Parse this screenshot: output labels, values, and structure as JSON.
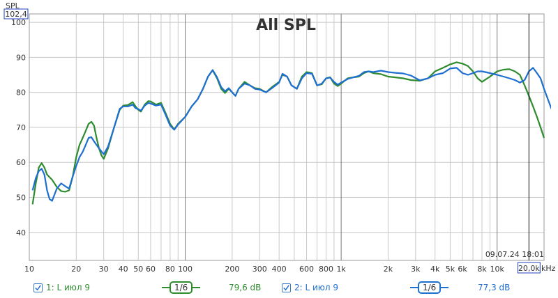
{
  "chart_data": {
    "type": "line",
    "title": "All SPL",
    "ylabel": "SPL",
    "xunit": "kHz",
    "xscale": "log",
    "xlim": [
      10,
      20000
    ],
    "ylim": [
      32,
      102.4
    ],
    "ymax_label": "102,4",
    "xmax_label": "20,0k",
    "yticks": [
      40,
      50,
      60,
      70,
      80,
      90,
      100
    ],
    "xticks": [
      {
        "v": 10,
        "label": "10"
      },
      {
        "v": 20,
        "label": "20"
      },
      {
        "v": 30,
        "label": "30"
      },
      {
        "v": 40,
        "label": "40"
      },
      {
        "v": 50,
        "label": "50"
      },
      {
        "v": 60,
        "label": "60"
      },
      {
        "v": 80,
        "label": "80"
      },
      {
        "v": 100,
        "label": "100"
      },
      {
        "v": 200,
        "label": "200"
      },
      {
        "v": 300,
        "label": "300"
      },
      {
        "v": 400,
        "label": "400"
      },
      {
        "v": 600,
        "label": "600"
      },
      {
        "v": 800,
        "label": "800"
      },
      {
        "v": 1000,
        "label": "1k"
      },
      {
        "v": 2000,
        "label": "2k"
      },
      {
        "v": 3000,
        "label": "3k"
      },
      {
        "v": 4000,
        "label": "4k"
      },
      {
        "v": 5000,
        "label": "5k"
      },
      {
        "v": 6000,
        "label": "6k"
      },
      {
        "v": 8000,
        "label": "8k"
      },
      {
        "v": 10000,
        "label": "10k"
      }
    ],
    "cursor_x": 16000,
    "timestamp": "09.07.24 18:01",
    "series": [
      {
        "name": "1: L июл 9",
        "color": "#2e8b2e",
        "smoothing": "1/6",
        "level": "79,6 dB",
        "points": [
          [
            10.5,
            48
          ],
          [
            11,
            54
          ],
          [
            11.5,
            58.5
          ],
          [
            12,
            59.8
          ],
          [
            12.5,
            58.5
          ],
          [
            13,
            56.5
          ],
          [
            14,
            55
          ],
          [
            15,
            53
          ],
          [
            16,
            51.8
          ],
          [
            17,
            51.6
          ],
          [
            18,
            52
          ],
          [
            19,
            56
          ],
          [
            20,
            61.5
          ],
          [
            21,
            65
          ],
          [
            22,
            67
          ],
          [
            23,
            69
          ],
          [
            24,
            71
          ],
          [
            25,
            71.6
          ],
          [
            26,
            70.5
          ],
          [
            27,
            67
          ],
          [
            28,
            64
          ],
          [
            29,
            62
          ],
          [
            30,
            61
          ],
          [
            32,
            64
          ],
          [
            35,
            70
          ],
          [
            38,
            75
          ],
          [
            40,
            76.2
          ],
          [
            43,
            76.4
          ],
          [
            46,
            77.2
          ],
          [
            48,
            76
          ],
          [
            50,
            75
          ],
          [
            52,
            74.5
          ],
          [
            55,
            76.5
          ],
          [
            58,
            77.5
          ],
          [
            60,
            77.4
          ],
          [
            65,
            76.5
          ],
          [
            70,
            77
          ],
          [
            75,
            74
          ],
          [
            80,
            71
          ],
          [
            85,
            69.4
          ],
          [
            90,
            71
          ],
          [
            100,
            73
          ],
          [
            110,
            76
          ],
          [
            120,
            78
          ],
          [
            130,
            81
          ],
          [
            140,
            84.5
          ],
          [
            150,
            86.3
          ],
          [
            160,
            84
          ],
          [
            170,
            81
          ],
          [
            180,
            79.8
          ],
          [
            190,
            81
          ],
          [
            200,
            80
          ],
          [
            210,
            79
          ],
          [
            220,
            81
          ],
          [
            240,
            83
          ],
          [
            260,
            82
          ],
          [
            280,
            81.2
          ],
          [
            300,
            81
          ],
          [
            330,
            80
          ],
          [
            360,
            81.5
          ],
          [
            400,
            83
          ],
          [
            420,
            85
          ],
          [
            450,
            84.5
          ],
          [
            480,
            82
          ],
          [
            520,
            81
          ],
          [
            560,
            84.5
          ],
          [
            600,
            85.8
          ],
          [
            650,
            85.5
          ],
          [
            700,
            82
          ],
          [
            750,
            82.3
          ],
          [
            800,
            84
          ],
          [
            850,
            84.3
          ],
          [
            900,
            82.5
          ],
          [
            950,
            81.8
          ],
          [
            1000,
            82.5
          ],
          [
            1100,
            84
          ],
          [
            1200,
            84.3
          ],
          [
            1300,
            84.5
          ],
          [
            1400,
            85.5
          ],
          [
            1500,
            86
          ],
          [
            1600,
            85.5
          ],
          [
            1800,
            85.2
          ],
          [
            2000,
            84.5
          ],
          [
            2200,
            84.3
          ],
          [
            2500,
            84
          ],
          [
            2800,
            83.5
          ],
          [
            3200,
            83.3
          ],
          [
            3600,
            84
          ],
          [
            4000,
            86
          ],
          [
            4500,
            87
          ],
          [
            5000,
            88
          ],
          [
            5500,
            88.6
          ],
          [
            6000,
            88.2
          ],
          [
            6500,
            87.5
          ],
          [
            7000,
            86
          ],
          [
            7500,
            84
          ],
          [
            8000,
            83
          ],
          [
            9000,
            84.5
          ],
          [
            10000,
            86
          ],
          [
            11000,
            86.5
          ],
          [
            12000,
            86.6
          ],
          [
            13000,
            86
          ],
          [
            14000,
            85
          ],
          [
            15000,
            82
          ],
          [
            16000,
            79
          ],
          [
            17000,
            76
          ],
          [
            18000,
            73
          ],
          [
            19000,
            70
          ],
          [
            20000,
            67
          ]
        ]
      },
      {
        "name": "2: L июл 9",
        "color": "#1f6fd0",
        "smoothing": "1/6",
        "level": "77,3 dB",
        "points": [
          [
            10.5,
            52
          ],
          [
            11,
            55.5
          ],
          [
            11.5,
            57.5
          ],
          [
            12,
            58.2
          ],
          [
            12.5,
            56.5
          ],
          [
            13,
            52
          ],
          [
            13.5,
            49.5
          ],
          [
            14,
            49
          ],
          [
            15,
            52.5
          ],
          [
            16,
            54
          ],
          [
            17,
            53.2
          ],
          [
            18,
            52.5
          ],
          [
            19,
            56
          ],
          [
            20,
            59
          ],
          [
            21,
            61.5
          ],
          [
            22,
            63
          ],
          [
            23,
            65
          ],
          [
            24,
            67
          ],
          [
            25,
            67.2
          ],
          [
            26,
            66
          ],
          [
            28,
            64
          ],
          [
            30,
            62.3
          ],
          [
            32,
            64.5
          ],
          [
            35,
            70
          ],
          [
            38,
            75.3
          ],
          [
            40,
            76
          ],
          [
            43,
            76
          ],
          [
            46,
            76.5
          ],
          [
            48,
            75.5
          ],
          [
            50,
            75.2
          ],
          [
            52,
            74.8
          ],
          [
            55,
            76.2
          ],
          [
            58,
            77
          ],
          [
            60,
            76.8
          ],
          [
            65,
            76.2
          ],
          [
            70,
            76.5
          ],
          [
            75,
            73.5
          ],
          [
            80,
            70.5
          ],
          [
            85,
            69.3
          ],
          [
            90,
            70.8
          ],
          [
            100,
            73
          ],
          [
            110,
            76
          ],
          [
            120,
            78
          ],
          [
            130,
            81
          ],
          [
            140,
            84.5
          ],
          [
            150,
            86.4
          ],
          [
            160,
            84.3
          ],
          [
            170,
            81.5
          ],
          [
            180,
            80.3
          ],
          [
            190,
            81.2
          ],
          [
            200,
            80
          ],
          [
            210,
            79
          ],
          [
            220,
            81
          ],
          [
            240,
            82.5
          ],
          [
            260,
            82
          ],
          [
            280,
            81
          ],
          [
            300,
            80.8
          ],
          [
            330,
            80
          ],
          [
            360,
            81.2
          ],
          [
            400,
            82.8
          ],
          [
            420,
            85.3
          ],
          [
            450,
            84.5
          ],
          [
            480,
            82
          ],
          [
            520,
            81
          ],
          [
            560,
            84
          ],
          [
            600,
            85.5
          ],
          [
            650,
            85.3
          ],
          [
            700,
            82
          ],
          [
            750,
            82.5
          ],
          [
            800,
            84
          ],
          [
            850,
            84.2
          ],
          [
            900,
            83
          ],
          [
            950,
            82.2
          ],
          [
            1000,
            82.8
          ],
          [
            1100,
            83.8
          ],
          [
            1200,
            84.3
          ],
          [
            1300,
            84.7
          ],
          [
            1400,
            85.8
          ],
          [
            1500,
            86
          ],
          [
            1600,
            85.8
          ],
          [
            1800,
            86.2
          ],
          [
            2000,
            85.8
          ],
          [
            2200,
            85.6
          ],
          [
            2500,
            85.4
          ],
          [
            2800,
            84.8
          ],
          [
            3200,
            83.4
          ],
          [
            3600,
            84
          ],
          [
            4000,
            85
          ],
          [
            4500,
            85.5
          ],
          [
            5000,
            86.8
          ],
          [
            5500,
            87
          ],
          [
            6000,
            85.5
          ],
          [
            6500,
            85
          ],
          [
            7000,
            85.5
          ],
          [
            7500,
            86
          ],
          [
            8000,
            86
          ],
          [
            9000,
            85.5
          ],
          [
            10000,
            85
          ],
          [
            11000,
            84.5
          ],
          [
            12000,
            84
          ],
          [
            13000,
            83.5
          ],
          [
            14000,
            82.8
          ],
          [
            15000,
            83.5
          ],
          [
            16000,
            86
          ],
          [
            17000,
            87
          ],
          [
            18000,
            85.5
          ],
          [
            19000,
            84
          ],
          [
            20000,
            81
          ],
          [
            22000,
            76
          ],
          [
            24000,
            72
          ],
          [
            26000,
            68
          ],
          [
            28000,
            65.5
          ]
        ]
      }
    ]
  },
  "legend": [
    {
      "label": "1: L июл 9",
      "smoothing": "1/6",
      "level": "79,6 dB",
      "color": "#2e8b2e"
    },
    {
      "label": "2: L июл 9",
      "smoothing": "1/6",
      "level": "77,3 dB",
      "color": "#1f6fd0"
    }
  ]
}
